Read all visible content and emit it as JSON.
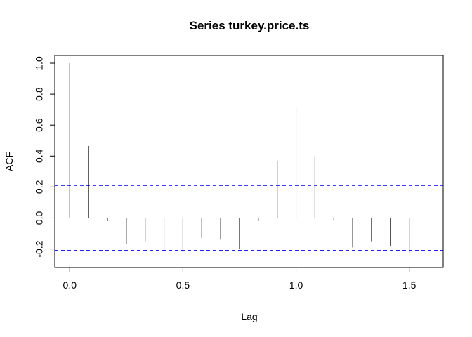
{
  "chart_data": {
    "type": "bar",
    "title": "Series  turkey.price.ts",
    "xlabel": "Lag",
    "ylabel": "ACF",
    "xlim": [
      -0.066,
      1.65
    ],
    "ylim": [
      -0.27,
      1.0
    ],
    "x_ticks": [
      0.0,
      0.5,
      1.0,
      1.5
    ],
    "x_tick_labels": [
      "0.0",
      "0.5",
      "1.0",
      "1.5"
    ],
    "y_ticks": [
      -0.2,
      0.0,
      0.2,
      0.4,
      0.6,
      0.8,
      1.0
    ],
    "y_tick_labels": [
      "-0.2",
      "0.0",
      "0.2",
      "0.4",
      "0.6",
      "0.8",
      "1.0"
    ],
    "confidence_band": 0.21,
    "confidence_color": "#0000ff",
    "zero_line": true,
    "grid": false,
    "lags": [
      0.0,
      0.0833,
      0.1667,
      0.25,
      0.3333,
      0.4167,
      0.5,
      0.5833,
      0.6667,
      0.75,
      0.8333,
      0.9167,
      1.0,
      1.0833,
      1.1667,
      1.25,
      1.3333,
      1.4167,
      1.5,
      1.5833
    ],
    "values": [
      1.0,
      0.465,
      -0.02,
      -0.17,
      -0.15,
      -0.22,
      -0.22,
      -0.13,
      -0.14,
      -0.2,
      -0.02,
      0.37,
      0.72,
      0.4,
      -0.01,
      -0.19,
      -0.15,
      -0.18,
      -0.23,
      -0.14
    ]
  }
}
